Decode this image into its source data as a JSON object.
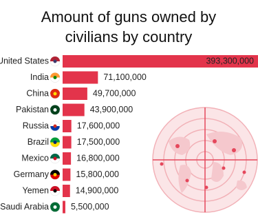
{
  "chart_data": {
    "type": "bar",
    "orientation": "horizontal",
    "title": [
      "Amount of guns owned by",
      "civilians by country"
    ],
    "categories": [
      "United States",
      "India",
      "China",
      "Pakistan",
      "Russia",
      "Brazil",
      "Mexico",
      "Germany",
      "Yemen",
      "Saudi Arabia"
    ],
    "values": [
      393300000,
      71100000,
      49700000,
      43900000,
      17600000,
      17500000,
      16800000,
      15800000,
      14900000,
      5500000
    ],
    "value_labels": [
      "393,300,000",
      "71,100,000",
      "49,700,000",
      "43,900,000",
      "17,600,000",
      "17,500,000",
      "16,800,000",
      "15,800,000",
      "14,900,000",
      "5,500,000"
    ],
    "color": "#e3344b"
  }
}
